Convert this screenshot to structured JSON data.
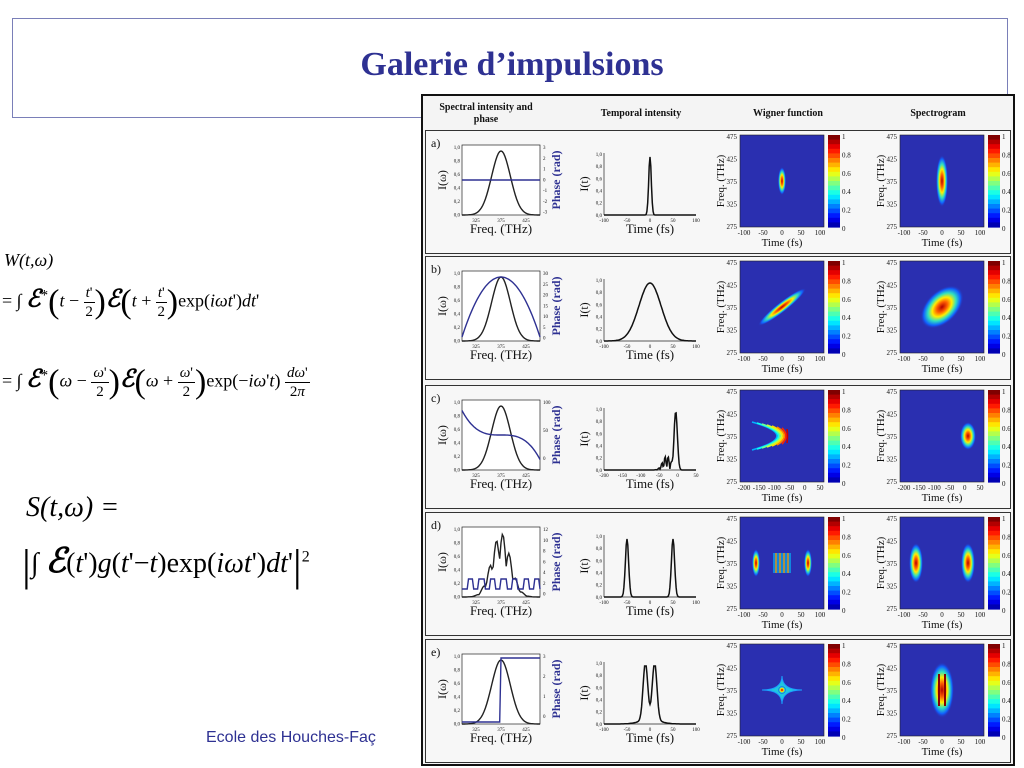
{
  "slide": {
    "title": "Galerie d’impulsions",
    "footer": "Ecole des Houches-Faç"
  },
  "equations": {
    "wigner_lhs": "W(t,ω)",
    "spectrogram_lhs": "S(t,ω) ="
  },
  "figure": {
    "columns": [
      "Spectral intensity and phase",
      "Temporal intensity",
      "Wigner function",
      "Spectrogram"
    ],
    "rows": [
      {
        "label": "a)",
        "phase_ticks": [
          "3",
          "2",
          "1",
          "0",
          "-1",
          "-2",
          "-3"
        ],
        "time_ticks": [
          "-100",
          "-50",
          "0",
          "50",
          "100"
        ],
        "wig_time_ticks": [
          "-100",
          "-50",
          "0",
          "50",
          "100"
        ]
      },
      {
        "label": "b)",
        "phase_ticks": [
          "30",
          "25",
          "20",
          "15",
          "10",
          "5",
          "0"
        ],
        "time_ticks": [
          "-100",
          "-50",
          "0",
          "50",
          "100"
        ],
        "wig_time_ticks": [
          "-100",
          "-50",
          "0",
          "50",
          "100"
        ]
      },
      {
        "label": "c)",
        "phase_ticks": [
          "100",
          "50",
          "0"
        ],
        "time_ticks": [
          "-200",
          "-150",
          "-100",
          "-50",
          "0",
          "50"
        ],
        "wig_time_ticks": [
          "-200",
          "-150",
          "-100",
          "-50",
          "0",
          "50"
        ]
      },
      {
        "label": "d)",
        "phase_ticks": [
          "12",
          "10",
          "8",
          "6",
          "4",
          "2",
          "0"
        ],
        "time_ticks": [
          "-100",
          "-50",
          "0",
          "50",
          "100"
        ],
        "wig_time_ticks": [
          "-100",
          "-50",
          "0",
          "50",
          "100"
        ]
      },
      {
        "label": "e)",
        "phase_ticks": [
          "3",
          "2",
          "1",
          "0"
        ],
        "time_ticks": [
          "-100",
          "-50",
          "0",
          "50",
          "100"
        ],
        "wig_time_ticks": [
          "-100",
          "-50",
          "0",
          "50",
          "100"
        ]
      }
    ],
    "axis": {
      "spec_ylabel": "I(ω)",
      "phase_ylabel": "Phase (rad)",
      "spec_xlabel": "Freq. (THz)",
      "temp_ylabel": "I(t)",
      "temp_xlabel": "Time (fs)",
      "wig_ylabel": "Freq. (THz)",
      "wig_xlabel": "Time (fs)",
      "freq_ticks": [
        "325",
        "375",
        "425"
      ],
      "freq_map_ticks": [
        "475",
        "425",
        "375",
        "325",
        "275"
      ],
      "intensity_ticks": [
        "1,0",
        "0,8",
        "0,6",
        "0,4",
        "0,2",
        "0,0"
      ],
      "colorbar_ticks": [
        "1",
        "0.8",
        "0.6",
        "0.4",
        "0.2",
        "0"
      ]
    }
  }
}
